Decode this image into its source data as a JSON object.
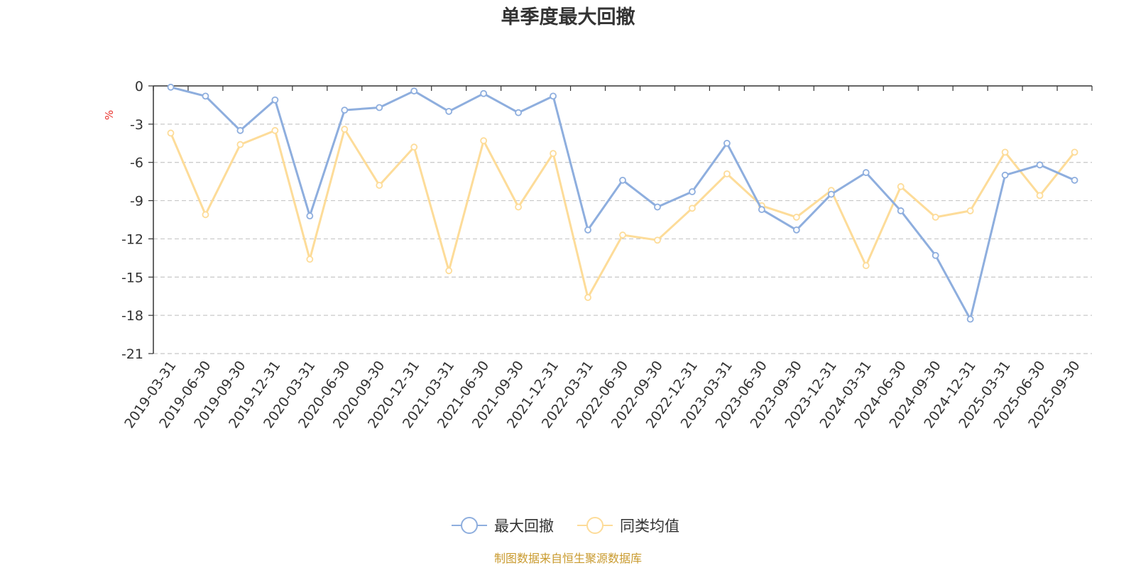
{
  "title": "单季度最大回撤",
  "source_note": "制图数据来自恒生聚源数据库",
  "colors": {
    "series1": "#8eaede",
    "series2": "#fddc99",
    "grid": "#c8c8c8",
    "axis": "#333333",
    "unit": "#e8312b",
    "source": "#c99a2e"
  },
  "chart_data": {
    "type": "line",
    "title": "单季度最大回撤",
    "ylabel": "%",
    "xlabel": "",
    "ylim": [
      -21,
      0
    ],
    "yticks": [
      0,
      -3,
      -6,
      -9,
      -12,
      -15,
      -18,
      -21
    ],
    "grid": "horizontal dashed",
    "legend_position": "bottom",
    "categories": [
      "2019-03-31",
      "2019-06-30",
      "2019-09-30",
      "2019-12-31",
      "2020-03-31",
      "2020-06-30",
      "2020-09-30",
      "2020-12-31",
      "2021-03-31",
      "2021-06-30",
      "2021-09-30",
      "2021-12-31",
      "2022-03-31",
      "2022-06-30",
      "2022-09-30",
      "2022-12-31",
      "2023-03-31",
      "2023-06-30",
      "2023-09-30",
      "2023-12-31",
      "2024-03-31",
      "2024-06-30",
      "2024-09-30",
      "2024-12-31",
      "2025-03-31",
      "2025-06-30",
      "2025-09-30"
    ],
    "series": [
      {
        "name": "最大回撤",
        "values": [
          -0.1,
          -0.8,
          -3.5,
          -1.1,
          -10.2,
          -1.9,
          -1.7,
          -0.4,
          -2.0,
          -0.6,
          -2.1,
          -0.8,
          -11.3,
          -7.4,
          -9.5,
          -8.3,
          -4.5,
          -9.7,
          -11.3,
          -8.5,
          -6.8,
          -9.8,
          -13.3,
          -18.3,
          -7.0,
          -6.2,
          -7.4
        ]
      },
      {
        "name": "同类均值",
        "values": [
          -3.7,
          -10.1,
          -4.6,
          -3.5,
          -13.6,
          -3.4,
          -7.8,
          -4.8,
          -14.5,
          -4.3,
          -9.5,
          -5.3,
          -16.6,
          -11.7,
          -12.1,
          -9.6,
          -6.9,
          -9.4,
          -10.3,
          -8.2,
          -14.1,
          -7.9,
          -10.3,
          -9.8,
          -5.2,
          -8.6,
          -5.2
        ]
      }
    ]
  }
}
